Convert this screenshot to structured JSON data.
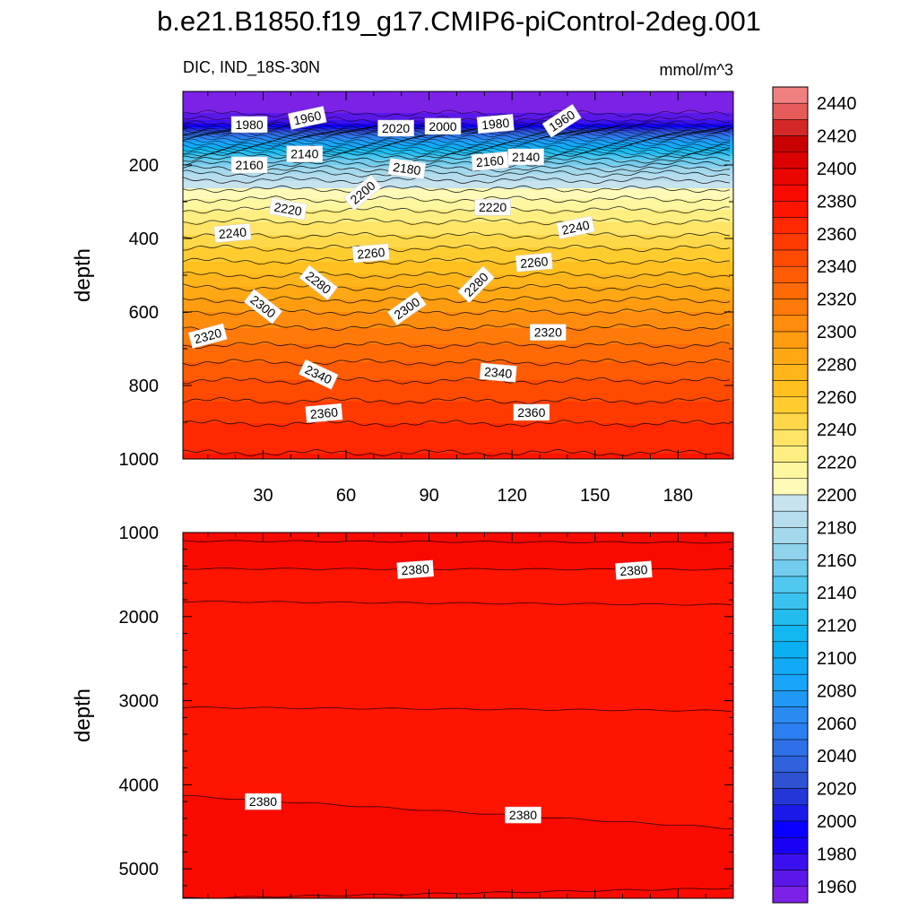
{
  "figure_title": "b.e21.B1850.f19_g17.CMIP6-piControl-2deg.001",
  "panel_left_label": "DIC, IND_18S-30N",
  "panel_right_label": "mmol/m^3",
  "colorbar_ticks": [
    "1960",
    "1980",
    "2000",
    "2020",
    "2040",
    "2060",
    "2080",
    "2100",
    "2120",
    "2140",
    "2160",
    "2180",
    "2200",
    "2220",
    "2240",
    "2260",
    "2280",
    "2300",
    "2320",
    "2340",
    "2360",
    "2380",
    "2400",
    "2420",
    "2440"
  ],
  "chart_data": [
    {
      "type": "heatmap",
      "name": "top-panel",
      "variable": "DIC",
      "region": "IND_18S-30N",
      "units": "mmol/m^3",
      "ylabel": "depth",
      "xlabel": "",
      "xlim": [
        1,
        200
      ],
      "ylim": [
        1000,
        0
      ],
      "x_ticks": [
        30,
        60,
        90,
        120,
        150,
        180
      ],
      "y_ticks": [
        200,
        400,
        600,
        800,
        1000
      ],
      "profile": [
        [
          0,
          1955
        ],
        [
          60,
          1960
        ],
        [
          85,
          1975
        ],
        [
          100,
          2000
        ],
        [
          120,
          2050
        ],
        [
          150,
          2100
        ],
        [
          175,
          2140
        ],
        [
          200,
          2162
        ],
        [
          230,
          2185
        ],
        [
          260,
          2198
        ],
        [
          280,
          2205
        ],
        [
          310,
          2216
        ],
        [
          360,
          2232
        ],
        [
          400,
          2242
        ],
        [
          450,
          2257
        ],
        [
          500,
          2270
        ],
        [
          550,
          2285
        ],
        [
          600,
          2300
        ],
        [
          650,
          2312
        ],
        [
          700,
          2322
        ],
        [
          760,
          2335
        ],
        [
          820,
          2346
        ],
        [
          880,
          2357
        ],
        [
          950,
          2366
        ],
        [
          1000,
          2372
        ]
      ],
      "contour_labels": [
        {
          "text": "1980",
          "x": 25,
          "depth": 90,
          "angle": 0
        },
        {
          "text": "1960",
          "x": 46,
          "depth": 72,
          "angle": -12
        },
        {
          "text": "2020",
          "x": 78,
          "depth": 100,
          "angle": 0
        },
        {
          "text": "2000",
          "x": 95,
          "depth": 95,
          "angle": 0
        },
        {
          "text": "1980",
          "x": 114,
          "depth": 88,
          "angle": -5
        },
        {
          "text": "1960",
          "x": 138,
          "depth": 80,
          "angle": -33
        },
        {
          "text": "2160",
          "x": 25,
          "depth": 200,
          "angle": 0
        },
        {
          "text": "2140",
          "x": 45,
          "depth": 170,
          "angle": 0
        },
        {
          "text": "2180",
          "x": 82,
          "depth": 210,
          "angle": 8
        },
        {
          "text": "2200",
          "x": 66,
          "depth": 275,
          "angle": -40
        },
        {
          "text": "2160",
          "x": 112,
          "depth": 190,
          "angle": -5
        },
        {
          "text": "2140",
          "x": 125,
          "depth": 178,
          "angle": 0
        },
        {
          "text": "2220",
          "x": 39,
          "depth": 320,
          "angle": 10
        },
        {
          "text": "2220",
          "x": 113,
          "depth": 315,
          "angle": 0
        },
        {
          "text": "2240",
          "x": 19,
          "depth": 385,
          "angle": -5
        },
        {
          "text": "2240",
          "x": 143,
          "depth": 370,
          "angle": -12
        },
        {
          "text": "2260",
          "x": 69,
          "depth": 440,
          "angle": -5
        },
        {
          "text": "2260",
          "x": 128,
          "depth": 465,
          "angle": -5
        },
        {
          "text": "2280",
          "x": 50,
          "depth": 520,
          "angle": 38
        },
        {
          "text": "2280",
          "x": 107,
          "depth": 525,
          "angle": -45
        },
        {
          "text": "2300",
          "x": 30,
          "depth": 585,
          "angle": 38
        },
        {
          "text": "2300",
          "x": 82,
          "depth": 590,
          "angle": -35
        },
        {
          "text": "2320",
          "x": 10,
          "depth": 665,
          "angle": -15
        },
        {
          "text": "2320",
          "x": 133,
          "depth": 655,
          "angle": 0
        },
        {
          "text": "2340",
          "x": 50,
          "depth": 770,
          "angle": 25
        },
        {
          "text": "2340",
          "x": 115,
          "depth": 765,
          "angle": 5
        },
        {
          "text": "2360",
          "x": 52,
          "depth": 875,
          "angle": -5
        },
        {
          "text": "2360",
          "x": 127,
          "depth": 873,
          "angle": 0
        }
      ]
    },
    {
      "type": "heatmap",
      "name": "bottom-panel",
      "variable": "DIC",
      "units": "mmol/m^3",
      "ylabel": "depth",
      "xlabel": "",
      "xlim": [
        1,
        200
      ],
      "ylim": [
        5350,
        1000
      ],
      "x_ticks": [
        30,
        60,
        90,
        120,
        150,
        180
      ],
      "y_ticks": [
        1000,
        2000,
        3000,
        4000,
        5000
      ],
      "band_values": [
        2385,
        2375,
        2372,
        2378,
        2383
      ],
      "contours": [
        {
          "value": 2380,
          "left_depth": 1100,
          "right_depth": 1120
        },
        {
          "value": 2380,
          "left_depth": 1430,
          "right_depth": 1440
        },
        {
          "value": 2370,
          "left_depth": 1820,
          "right_depth": 1860
        },
        {
          "value": 2370,
          "left_depth": 3080,
          "right_depth": 3120
        },
        {
          "value": 2380,
          "left_depth": 4130,
          "right_depth": 4520
        },
        {
          "value": 2390,
          "left_depth": 5350,
          "right_depth": 5230
        }
      ],
      "contour_labels": [
        {
          "text": "2380",
          "x": 85,
          "depth": 1440,
          "angle": -4
        },
        {
          "text": "2380",
          "x": 164,
          "depth": 1450,
          "angle": -4
        },
        {
          "text": "2380",
          "x": 30,
          "depth": 4200,
          "angle": 0
        },
        {
          "text": "2380",
          "x": 124,
          "depth": 4360,
          "angle": 0
        }
      ]
    }
  ]
}
